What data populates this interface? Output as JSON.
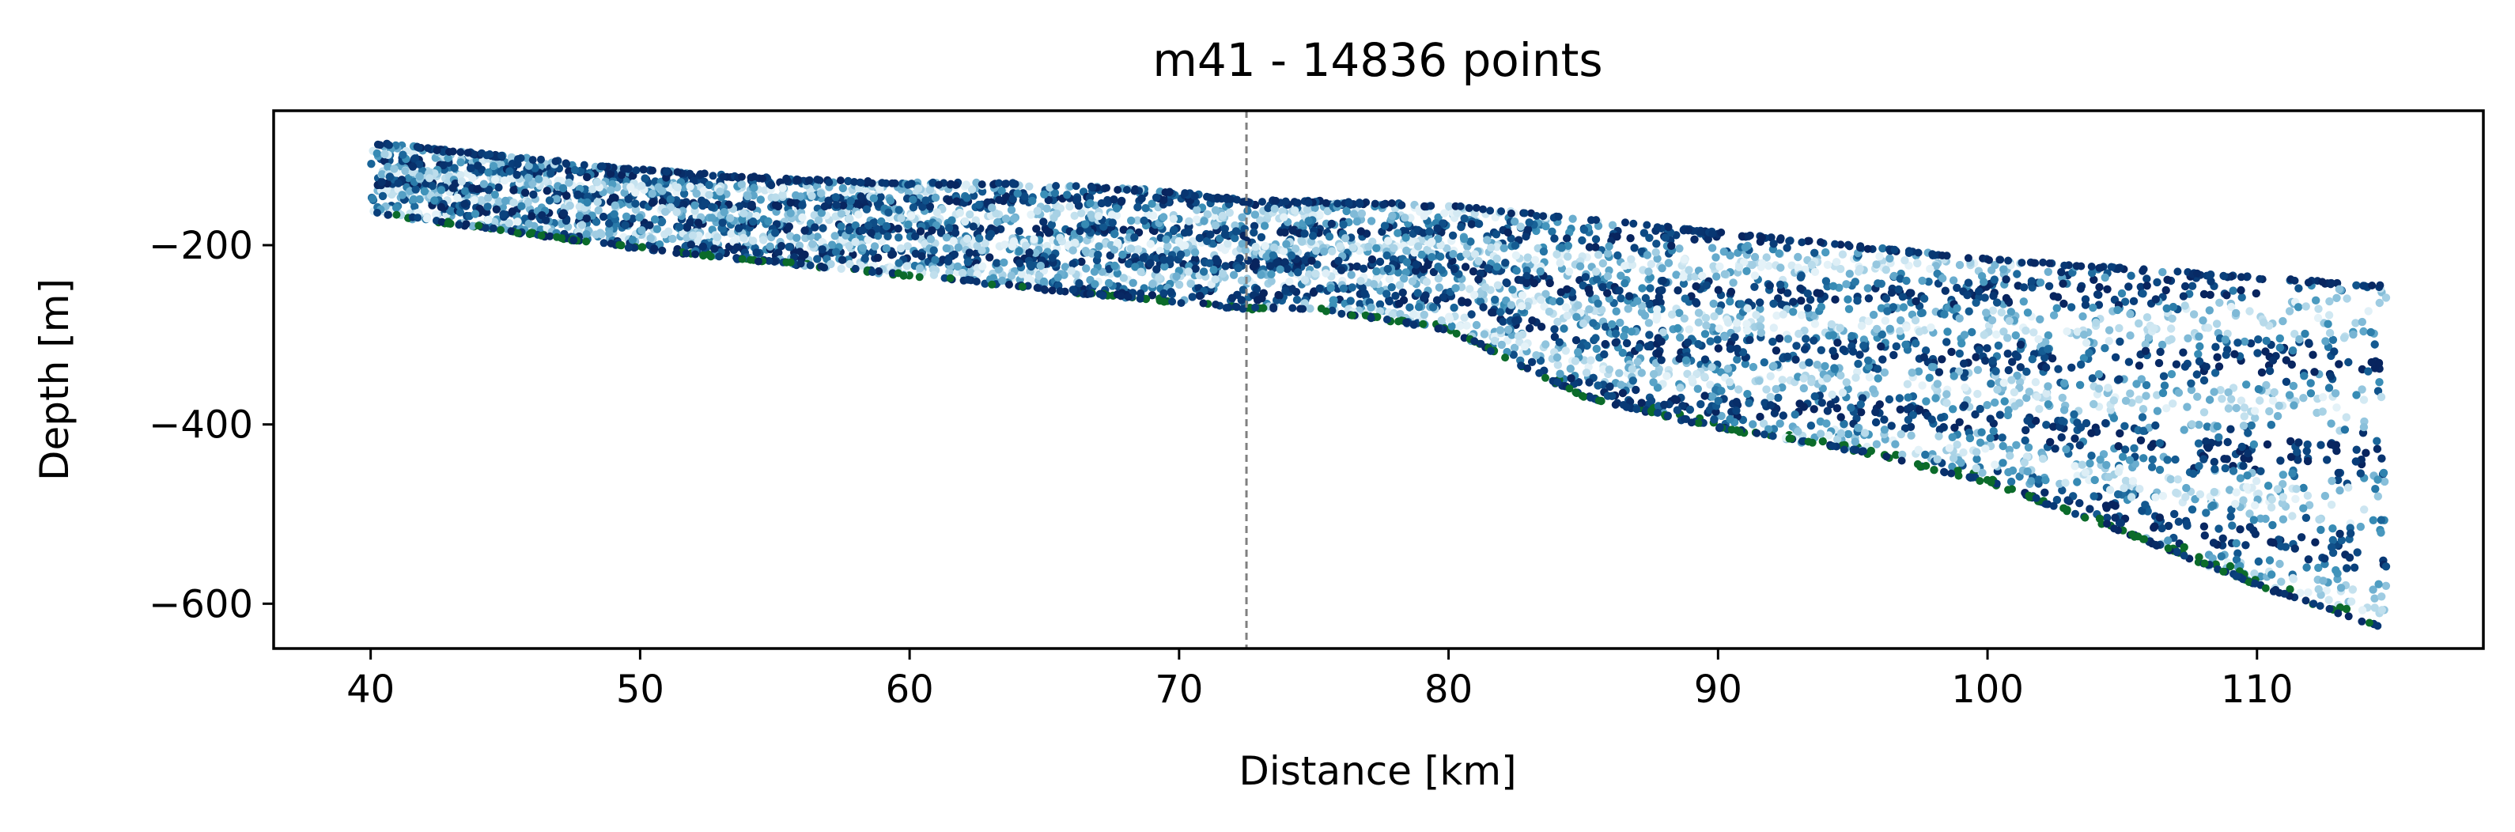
{
  "chart_data": {
    "type": "scatter",
    "title": "m41 - 14836 points",
    "xlabel": "Distance [km]",
    "ylabel": "Depth [m]",
    "xlim": [
      36.4,
      118.4
    ],
    "ylim": [
      -650,
      -50
    ],
    "xticks": [
      40,
      50,
      60,
      70,
      80,
      90,
      100,
      110
    ],
    "xtick_labels": [
      "40",
      "50",
      "60",
      "70",
      "80",
      "90",
      "100",
      "110"
    ],
    "yticks": [
      -200,
      -400,
      -600
    ],
    "ytick_labels": [
      "−200",
      "−400",
      "−600"
    ],
    "grid": false,
    "legend": "none",
    "point_count": 14836,
    "colormap": "PuBu-like (light cyan to dark navy)",
    "colors": {
      "points_light": "#e4f2f8",
      "points_mid": "#3a8fb7",
      "points_dark": "#08245e",
      "edge_points": "#0b6b2a",
      "marker_line": "#808080"
    },
    "vertical_marker": {
      "x": 72.5,
      "style": "dashed"
    },
    "upper_boundary": {
      "x": [
        40,
        45,
        50,
        55,
        60,
        65,
        70,
        72.5,
        75,
        80,
        85,
        90,
        95,
        100,
        105,
        110,
        114.8
      ],
      "y": [
        -85,
        -100,
        -115,
        -125,
        -130,
        -130,
        -140,
        -150,
        -150,
        -155,
        -170,
        -185,
        -200,
        -215,
        -225,
        -235,
        -245
      ]
    },
    "lower_boundary": {
      "x": [
        40,
        45,
        50,
        55,
        60,
        65,
        70,
        72.5,
        75,
        80,
        85,
        90,
        95,
        100,
        105,
        110,
        114.8
      ],
      "y": [
        -165,
        -185,
        -205,
        -220,
        -235,
        -250,
        -265,
        -272,
        -272,
        -295,
        -370,
        -405,
        -430,
        -465,
        -520,
        -580,
        -630
      ]
    }
  }
}
